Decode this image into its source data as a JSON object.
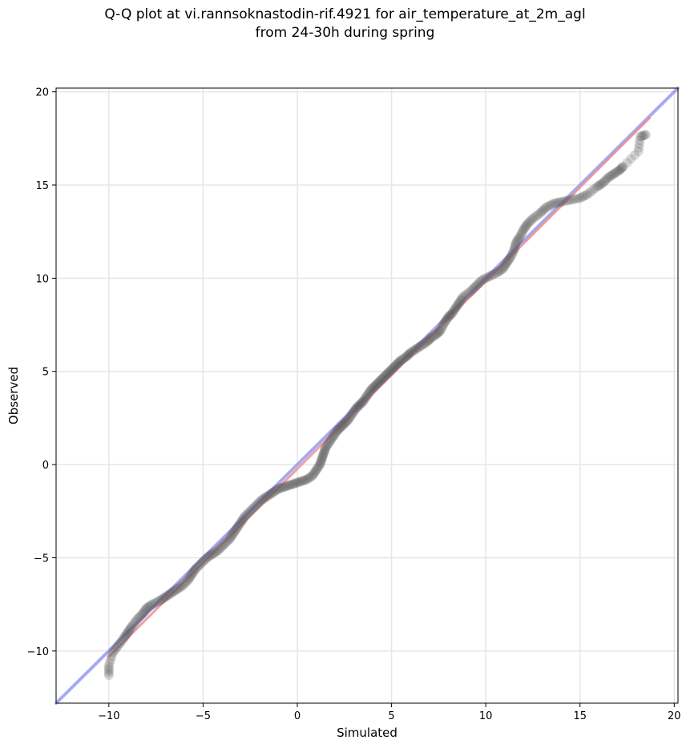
{
  "chart_data": {
    "type": "scatter",
    "title_line1": "Q-Q plot at vi.rannsoknastodin-rif.4921 for air_temperature_at_2m_agl",
    "title_line2": "from 24-30h during spring",
    "xlabel": "Simulated",
    "ylabel": "Observed",
    "xlim": [
      -12.8,
      20.2
    ],
    "ylim": [
      -12.8,
      20.2
    ],
    "xticks": [
      -10,
      -5,
      0,
      5,
      10,
      15,
      20
    ],
    "yticks": [
      -10,
      -5,
      0,
      5,
      10,
      15,
      20
    ],
    "xtick_labels": [
      "−10",
      "−5",
      "0",
      "5",
      "10",
      "15",
      "20"
    ],
    "ytick_labels": [
      "−10",
      "−5",
      "0",
      "5",
      "10",
      "15",
      "20"
    ],
    "grid": true,
    "identity_line": {
      "color": "#8a8cf0",
      "from": [
        -12.8,
        -12.8
      ],
      "to": [
        20.2,
        20.2
      ]
    },
    "fit_line": {
      "color": "#f08a8a",
      "from": [
        -10,
        -10.3
      ],
      "to": [
        18.7,
        18.6
      ]
    },
    "points_color": "#555555",
    "points": [
      [
        -10.0,
        -11.3
      ],
      [
        -10.0,
        -10.8
      ],
      [
        -9.8,
        -10.1
      ],
      [
        -9.5,
        -9.7
      ],
      [
        -9.2,
        -9.3
      ],
      [
        -9.0,
        -9.0
      ],
      [
        -8.8,
        -8.7
      ],
      [
        -8.5,
        -8.3
      ],
      [
        -8.2,
        -8.0
      ],
      [
        -8.0,
        -7.7
      ],
      [
        -7.7,
        -7.5
      ],
      [
        -7.3,
        -7.3
      ],
      [
        -7.0,
        -7.1
      ],
      [
        -6.7,
        -6.9
      ],
      [
        -6.4,
        -6.7
      ],
      [
        -6.1,
        -6.5
      ],
      [
        -5.8,
        -6.2
      ],
      [
        -5.6,
        -5.9
      ],
      [
        -5.4,
        -5.6
      ],
      [
        -5.1,
        -5.3
      ],
      [
        -4.8,
        -5.0
      ],
      [
        -4.5,
        -4.8
      ],
      [
        -4.2,
        -4.6
      ],
      [
        -3.9,
        -4.3
      ],
      [
        -3.6,
        -4.0
      ],
      [
        -3.4,
        -3.7
      ],
      [
        -3.2,
        -3.4
      ],
      [
        -3.0,
        -3.1
      ],
      [
        -2.8,
        -2.8
      ],
      [
        -2.5,
        -2.5
      ],
      [
        -2.2,
        -2.2
      ],
      [
        -1.9,
        -1.9
      ],
      [
        -1.6,
        -1.7
      ],
      [
        -1.3,
        -1.5
      ],
      [
        -1.0,
        -1.3
      ],
      [
        -0.7,
        -1.2
      ],
      [
        -0.4,
        -1.1
      ],
      [
        -0.1,
        -1.0
      ],
      [
        0.2,
        -0.9
      ],
      [
        0.5,
        -0.8
      ],
      [
        0.8,
        -0.6
      ],
      [
        1.0,
        -0.3
      ],
      [
        1.2,
        0.0
      ],
      [
        1.3,
        0.3
      ],
      [
        1.4,
        0.6
      ],
      [
        1.5,
        0.9
      ],
      [
        1.7,
        1.2
      ],
      [
        1.9,
        1.5
      ],
      [
        2.1,
        1.8
      ],
      [
        2.3,
        2.0
      ],
      [
        2.5,
        2.2
      ],
      [
        2.7,
        2.4
      ],
      [
        2.9,
        2.7
      ],
      [
        3.1,
        3.0
      ],
      [
        3.3,
        3.2
      ],
      [
        3.5,
        3.4
      ],
      [
        3.7,
        3.7
      ],
      [
        3.9,
        4.0
      ],
      [
        4.1,
        4.2
      ],
      [
        4.3,
        4.4
      ],
      [
        4.5,
        4.6
      ],
      [
        4.7,
        4.8
      ],
      [
        4.9,
        5.0
      ],
      [
        5.1,
        5.2
      ],
      [
        5.3,
        5.4
      ],
      [
        5.5,
        5.6
      ],
      [
        5.8,
        5.8
      ],
      [
        6.0,
        6.0
      ],
      [
        6.3,
        6.2
      ],
      [
        6.6,
        6.4
      ],
      [
        6.9,
        6.6
      ],
      [
        7.1,
        6.8
      ],
      [
        7.4,
        7.0
      ],
      [
        7.6,
        7.2
      ],
      [
        7.8,
        7.6
      ],
      [
        8.0,
        7.9
      ],
      [
        8.2,
        8.1
      ],
      [
        8.4,
        8.4
      ],
      [
        8.6,
        8.7
      ],
      [
        8.8,
        9.0
      ],
      [
        9.2,
        9.3
      ],
      [
        9.5,
        9.6
      ],
      [
        9.8,
        9.9
      ],
      [
        10.2,
        10.1
      ],
      [
        10.6,
        10.3
      ],
      [
        10.9,
        10.5
      ],
      [
        11.1,
        10.8
      ],
      [
        11.3,
        11.1
      ],
      [
        11.5,
        11.5
      ],
      [
        11.6,
        11.9
      ],
      [
        11.8,
        12.2
      ],
      [
        12.0,
        12.6
      ],
      [
        12.2,
        12.9
      ],
      [
        12.5,
        13.2
      ],
      [
        12.9,
        13.5
      ],
      [
        13.2,
        13.8
      ],
      [
        13.6,
        14.0
      ],
      [
        14.0,
        14.1
      ],
      [
        14.5,
        14.2
      ],
      [
        15.0,
        14.3
      ],
      [
        15.4,
        14.5
      ],
      [
        15.9,
        14.9
      ],
      [
        16.2,
        15.1
      ],
      [
        16.5,
        15.4
      ],
      [
        16.8,
        15.6
      ],
      [
        17.1,
        15.8
      ],
      [
        17.3,
        16.0
      ],
      [
        18.1,
        16.8
      ],
      [
        18.2,
        17.6
      ],
      [
        18.5,
        17.7
      ]
    ]
  }
}
